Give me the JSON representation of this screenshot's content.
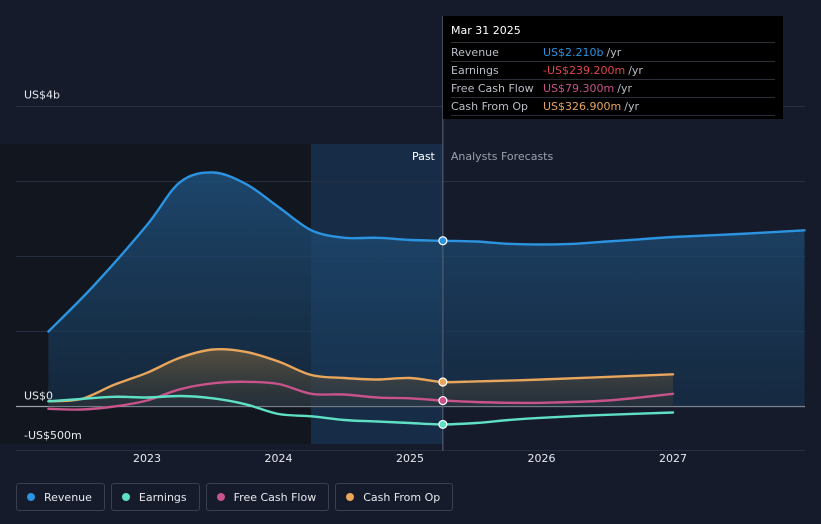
{
  "chart_data": {
    "type": "line",
    "title": "",
    "x_tick_labels": [
      "2023",
      "2024",
      "2025",
      "2026",
      "2027"
    ],
    "y_tick_labels": [
      "US$4b",
      "US$0",
      "-US$500m"
    ],
    "ylim": [
      -500,
      4000
    ],
    "divider": {
      "x": 2025.25,
      "past_label": "Past",
      "forecast_label": "Analysts Forecasts"
    },
    "series": [
      {
        "name": "Revenue",
        "color": "#2b93e0",
        "points": [
          [
            2022.25,
            1000
          ],
          [
            2022.6,
            1620
          ],
          [
            2023.0,
            2420
          ],
          [
            2023.25,
            2990
          ],
          [
            2023.5,
            3120
          ],
          [
            2023.75,
            2970
          ],
          [
            2024.0,
            2660
          ],
          [
            2024.25,
            2350
          ],
          [
            2024.5,
            2250
          ],
          [
            2024.75,
            2250
          ],
          [
            2025.0,
            2220
          ],
          [
            2025.25,
            2210
          ],
          [
            2025.5,
            2200
          ],
          [
            2025.75,
            2170
          ],
          [
            2026.0,
            2160
          ],
          [
            2026.25,
            2170
          ],
          [
            2026.5,
            2200
          ],
          [
            2026.75,
            2230
          ],
          [
            2027.0,
            2260
          ],
          [
            2027.5,
            2300
          ],
          [
            2028.0,
            2350
          ]
        ]
      },
      {
        "name": "Earnings",
        "color": "#5fe0c5",
        "points": [
          [
            2022.25,
            70
          ],
          [
            2022.5,
            100
          ],
          [
            2022.75,
            130
          ],
          [
            2023.0,
            120
          ],
          [
            2023.25,
            140
          ],
          [
            2023.5,
            110
          ],
          [
            2023.75,
            30
          ],
          [
            2024.0,
            -100
          ],
          [
            2024.25,
            -130
          ],
          [
            2024.5,
            -180
          ],
          [
            2024.75,
            -200
          ],
          [
            2025.0,
            -220
          ],
          [
            2025.25,
            -239
          ],
          [
            2025.5,
            -220
          ],
          [
            2025.75,
            -180
          ],
          [
            2026.0,
            -150
          ],
          [
            2026.5,
            -110
          ],
          [
            2027.0,
            -80
          ]
        ]
      },
      {
        "name": "Free Cash Flow",
        "color": "#c7538a",
        "points": [
          [
            2022.25,
            -30
          ],
          [
            2022.5,
            -40
          ],
          [
            2022.75,
            0
          ],
          [
            2023.0,
            80
          ],
          [
            2023.25,
            230
          ],
          [
            2023.5,
            310
          ],
          [
            2023.75,
            330
          ],
          [
            2024.0,
            300
          ],
          [
            2024.25,
            170
          ],
          [
            2024.5,
            160
          ],
          [
            2024.75,
            120
          ],
          [
            2025.0,
            110
          ],
          [
            2025.25,
            79
          ],
          [
            2025.5,
            60
          ],
          [
            2025.75,
            50
          ],
          [
            2026.0,
            50
          ],
          [
            2026.5,
            80
          ],
          [
            2027.0,
            170
          ]
        ]
      },
      {
        "name": "Cash From Op",
        "color": "#e8a55c",
        "points": [
          [
            2022.25,
            70
          ],
          [
            2022.5,
            100
          ],
          [
            2022.75,
            290
          ],
          [
            2023.0,
            450
          ],
          [
            2023.25,
            650
          ],
          [
            2023.5,
            760
          ],
          [
            2023.75,
            730
          ],
          [
            2024.0,
            600
          ],
          [
            2024.25,
            420
          ],
          [
            2024.5,
            380
          ],
          [
            2024.75,
            360
          ],
          [
            2025.0,
            380
          ],
          [
            2025.25,
            327
          ],
          [
            2025.5,
            335
          ],
          [
            2025.75,
            345
          ],
          [
            2026.0,
            360
          ],
          [
            2026.5,
            395
          ],
          [
            2027.0,
            430
          ]
        ]
      }
    ],
    "highlight_x": 2025.25,
    "legend_position": "bottom-left"
  },
  "tooltip": {
    "date": "Mar 31 2025",
    "rows": [
      {
        "label": "Revenue",
        "value": "US$2.210b",
        "unit": "/yr",
        "color": "#2b93e0"
      },
      {
        "label": "Earnings",
        "value": "-US$239.200m",
        "unit": "/yr",
        "color": "#e0474c"
      },
      {
        "label": "Free Cash Flow",
        "value": "US$79.300m",
        "unit": "/yr",
        "color": "#c7538a"
      },
      {
        "label": "Cash From Op",
        "value": "US$326.900m",
        "unit": "/yr",
        "color": "#e8a55c"
      }
    ]
  },
  "legend": [
    {
      "label": "Revenue",
      "color": "#2b93e0"
    },
    {
      "label": "Earnings",
      "color": "#5fe0c5"
    },
    {
      "label": "Free Cash Flow",
      "color": "#c7538a"
    },
    {
      "label": "Cash From Op",
      "color": "#e8a55c"
    }
  ]
}
